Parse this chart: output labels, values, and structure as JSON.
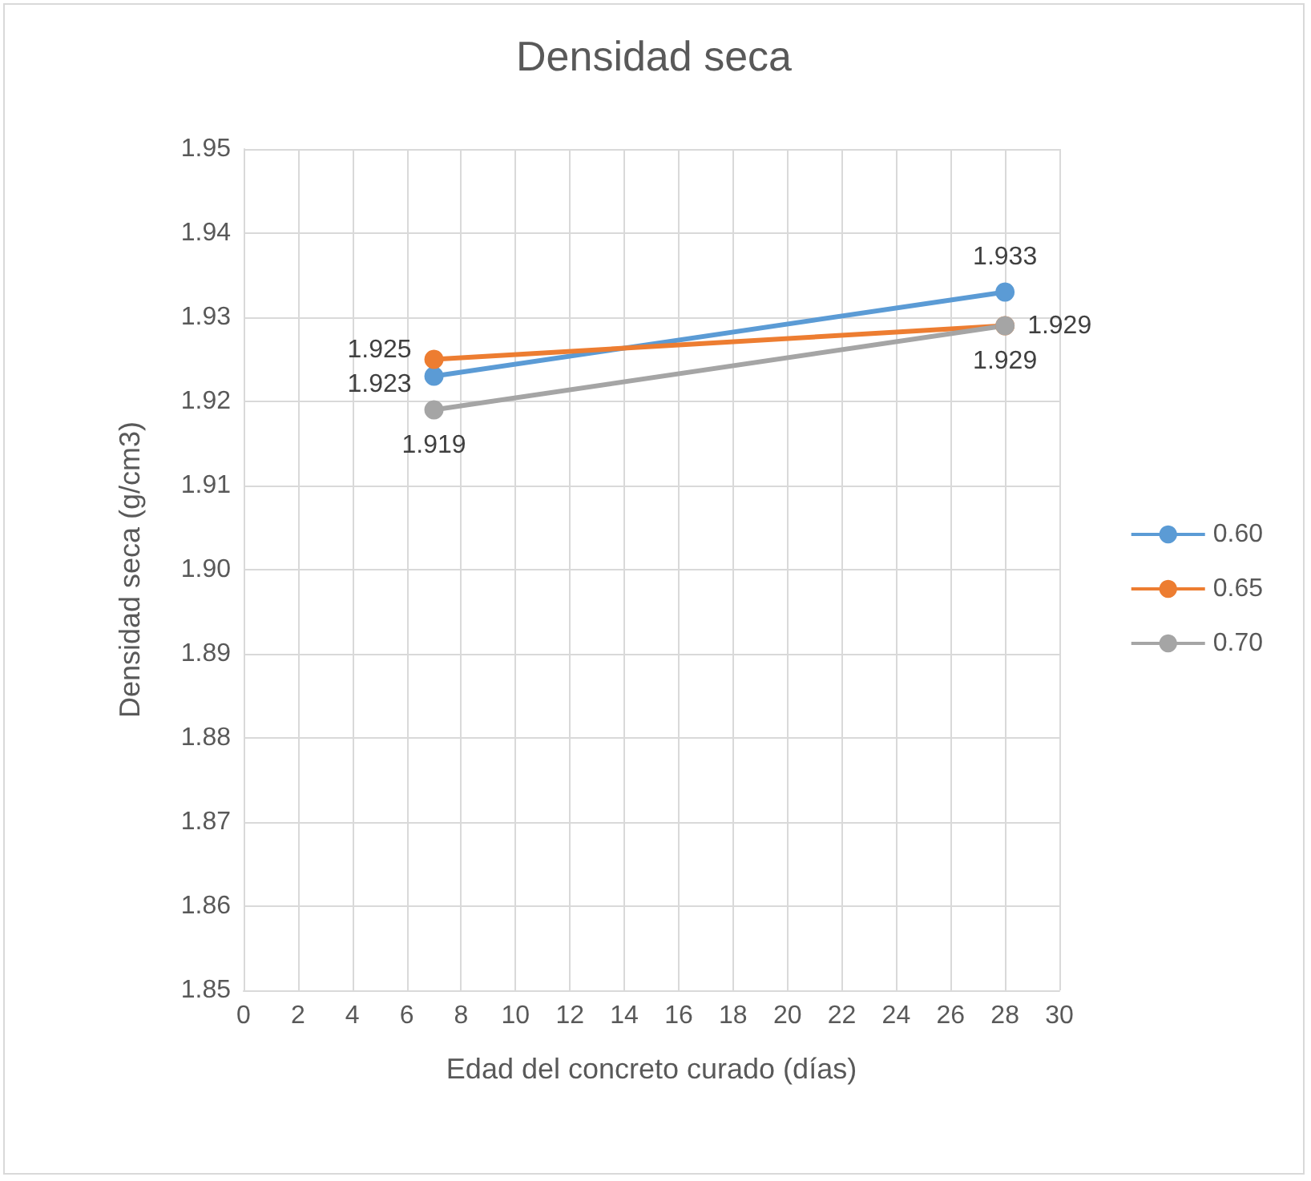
{
  "chart_data": {
    "type": "line",
    "title": "Densidad seca",
    "xlabel": "Edad del concreto curado (días)",
    "ylabel": "Densidad seca (g/cm3)",
    "x": [
      7,
      28
    ],
    "series": [
      {
        "name": "0.60",
        "color": "#5b9bd5",
        "values": [
          1.923,
          1.933
        ]
      },
      {
        "name": "0.65",
        "color": "#ed7d31",
        "values": [
          1.925,
          1.929
        ]
      },
      {
        "name": "0.70",
        "color": "#a5a5a5",
        "values": [
          1.919,
          1.929
        ]
      }
    ],
    "xlim": [
      0,
      30
    ],
    "xticks": [
      0,
      2,
      4,
      6,
      8,
      10,
      12,
      14,
      16,
      18,
      20,
      22,
      24,
      26,
      28,
      30
    ],
    "ylim": [
      1.85,
      1.95
    ],
    "yticks": [
      1.85,
      1.86,
      1.87,
      1.88,
      1.89,
      {
        "value": 1.9,
        "label": "1.90"
      },
      1.91,
      1.92,
      1.93,
      1.94,
      1.95
    ],
    "grid": true,
    "legend": "right",
    "marker": "circle",
    "line_style": "solid",
    "data_labels": true
  }
}
